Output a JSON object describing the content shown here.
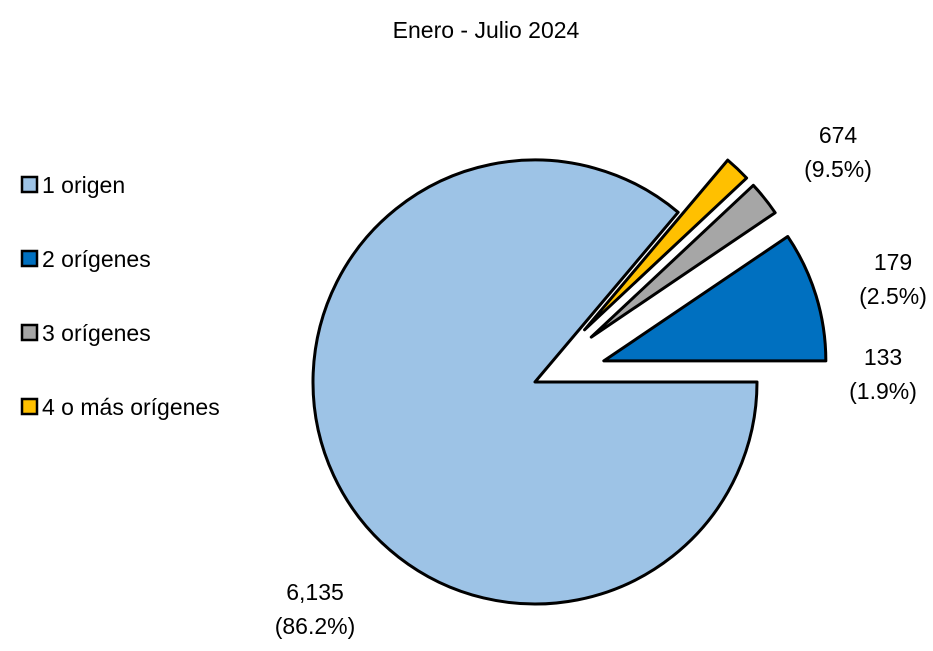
{
  "chart_data": {
    "type": "pie",
    "title": "Enero - Julio 2024",
    "legend_position": "left",
    "slices": [
      {
        "label": "1 origen",
        "value": 6135,
        "percent_label": "(86.2%)",
        "value_label": "6,135",
        "color": "#9DC3E6"
      },
      {
        "label": "2 orígenes",
        "value": 674,
        "percent_label": "(9.5%)",
        "value_label": "674",
        "color": "#0070C0"
      },
      {
        "label": "3 orígenes",
        "value": 179,
        "percent_label": "(2.5%)",
        "value_label": "179",
        "color": "#A6A6A6"
      },
      {
        "label": "4 o más orígenes",
        "value": 133,
        "percent_label": "(1.9%)",
        "value_label": "133",
        "color": "#FFC000"
      }
    ]
  }
}
